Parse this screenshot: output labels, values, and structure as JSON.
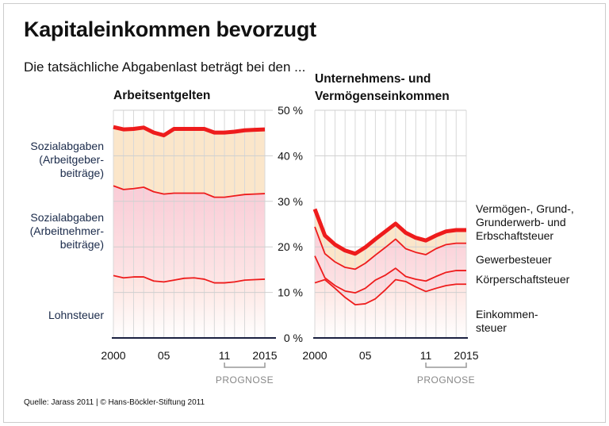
{
  "title": "Kapitaleinkommen bevorzugt",
  "subtitle": "Die tatsächliche Abgabenlast beträgt bei den ...",
  "source": "Quelle: Jarass 2011 | © Hans-Böckler-Stiftung 2011",
  "colors": {
    "line": "#ee1c1c",
    "band_orange": "#fbe3c4",
    "band_pink": "#f9c6d2",
    "bottom": "#fde2de"
  },
  "chart_data": [
    {
      "type": "area",
      "title": "Arbeitsentgelten",
      "x": [
        2000,
        2001,
        2002,
        2003,
        2004,
        2005,
        2006,
        2007,
        2008,
        2009,
        2010,
        2011,
        2012,
        2013,
        2014,
        2015
      ],
      "xtick_labels": [
        "2000",
        "05",
        "11",
        "2015"
      ],
      "ytick_labels": [
        "0 %",
        "10 %",
        "20 %",
        "30 %",
        "40 %",
        "50 %"
      ],
      "ylim": [
        0,
        50
      ],
      "forecast_label": "PROGNOSE",
      "forecast_range": [
        2011,
        2015
      ],
      "grid": true,
      "series": [
        {
          "name": "Sozialabgaben (Arbeitgeber-beiträge)",
          "label_lines": [
            "Sozialabgaben",
            "(Arbeitgeber-",
            "beiträge)"
          ],
          "values": [
            46.3,
            45.8,
            45.9,
            46.2,
            45.1,
            44.5,
            45.9,
            45.9,
            45.9,
            45.9,
            45.1,
            45.1,
            45.3,
            45.6,
            45.7,
            45.8
          ]
        },
        {
          "name": "Sozialabgaben (Arbeitnehmer-beiträge)",
          "label_lines": [
            "Sozialabgaben",
            "(Arbeitnehmer-",
            "beiträge)"
          ],
          "values": [
            33.4,
            32.6,
            32.8,
            33.1,
            32.1,
            31.6,
            31.8,
            31.8,
            31.8,
            31.8,
            30.9,
            30.9,
            31.2,
            31.5,
            31.6,
            31.7
          ]
        },
        {
          "name": "Lohnsteuer",
          "label_lines": [
            "Lohnsteuer"
          ],
          "values": [
            13.7,
            13.2,
            13.4,
            13.4,
            12.5,
            12.3,
            12.7,
            13.1,
            13.2,
            12.9,
            12.1,
            12.1,
            12.3,
            12.7,
            12.8,
            12.9
          ]
        }
      ]
    },
    {
      "type": "area",
      "title": "Unternehmens- und Vermögenseinkommen",
      "title_lines": [
        "Unternehmens- und",
        "Vermögenseinkommen"
      ],
      "x": [
        2000,
        2001,
        2002,
        2003,
        2004,
        2005,
        2006,
        2007,
        2008,
        2009,
        2010,
        2011,
        2012,
        2013,
        2014,
        2015
      ],
      "xtick_labels": [
        "2000",
        "05",
        "11",
        "2015"
      ],
      "ylim": [
        0,
        50
      ],
      "forecast_label": "PROGNOSE",
      "forecast_range": [
        2011,
        2015
      ],
      "grid": true,
      "series": [
        {
          "name": "Vermögen-, Grund-, Grunderwerb- und Erbschaftsteuer",
          "label_lines": [
            "Vermögen-, Grund-,",
            "Grunderwerb- und",
            "Erbschaftsteuer"
          ],
          "values": [
            28.3,
            22.5,
            20.5,
            19.2,
            18.5,
            19.9,
            21.7,
            23.4,
            25.1,
            23.1,
            22.0,
            21.4,
            22.5,
            23.4,
            23.7,
            23.7
          ]
        },
        {
          "name": "Gewerbesteuer",
          "label_lines": [
            "Gewerbesteuer"
          ],
          "values": [
            24.4,
            18.5,
            16.7,
            15.5,
            15.1,
            16.4,
            18.2,
            19.9,
            21.7,
            19.6,
            18.8,
            18.3,
            19.6,
            20.5,
            20.8,
            20.8
          ]
        },
        {
          "name": "Körperschaftsteuer",
          "label_lines": [
            "Körperschaftsteuer"
          ],
          "values": [
            18.0,
            13.2,
            11.5,
            10.3,
            9.9,
            10.9,
            12.7,
            13.8,
            15.3,
            13.5,
            12.9,
            12.5,
            13.5,
            14.4,
            14.8,
            14.8
          ]
        },
        {
          "name": "Einkommensteuer",
          "label_lines": [
            "Einkommen-",
            "steuer"
          ],
          "values": [
            12.1,
            12.8,
            10.9,
            8.9,
            7.3,
            7.5,
            8.6,
            10.6,
            12.8,
            12.4,
            11.2,
            10.2,
            10.9,
            11.5,
            11.8,
            11.8
          ]
        }
      ]
    }
  ]
}
